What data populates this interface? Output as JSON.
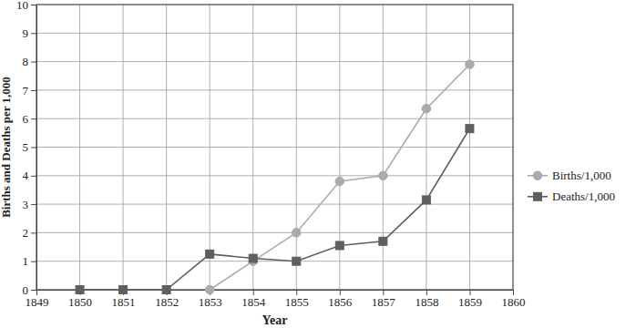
{
  "chart_data": {
    "type": "line",
    "x_label": "Year",
    "y_label": "Births and Deaths per 1,000",
    "x": [
      1850,
      1851,
      1852,
      1853,
      1854,
      1855,
      1856,
      1857,
      1858,
      1859
    ],
    "series": [
      {
        "name": "Births/1,000",
        "color": "#ababab",
        "marker": "circle",
        "values": [
          null,
          null,
          null,
          0,
          1.0,
          2.0,
          3.8,
          4.0,
          6.35,
          7.9
        ]
      },
      {
        "name": "Deaths/1,000",
        "color": "#5f5f5f",
        "marker": "square",
        "values": [
          0,
          0,
          0,
          1.25,
          1.1,
          1.0,
          1.55,
          1.7,
          3.15,
          5.65
        ]
      }
    ],
    "xlim": [
      1849,
      1860
    ],
    "xticks": [
      1849,
      1850,
      1851,
      1852,
      1853,
      1854,
      1855,
      1856,
      1857,
      1858,
      1859,
      1860
    ],
    "ylim": [
      0,
      10
    ],
    "yticks": [
      0,
      1,
      2,
      3,
      4,
      5,
      6,
      7,
      8,
      9,
      10
    ],
    "grid": true,
    "legend": "right"
  }
}
